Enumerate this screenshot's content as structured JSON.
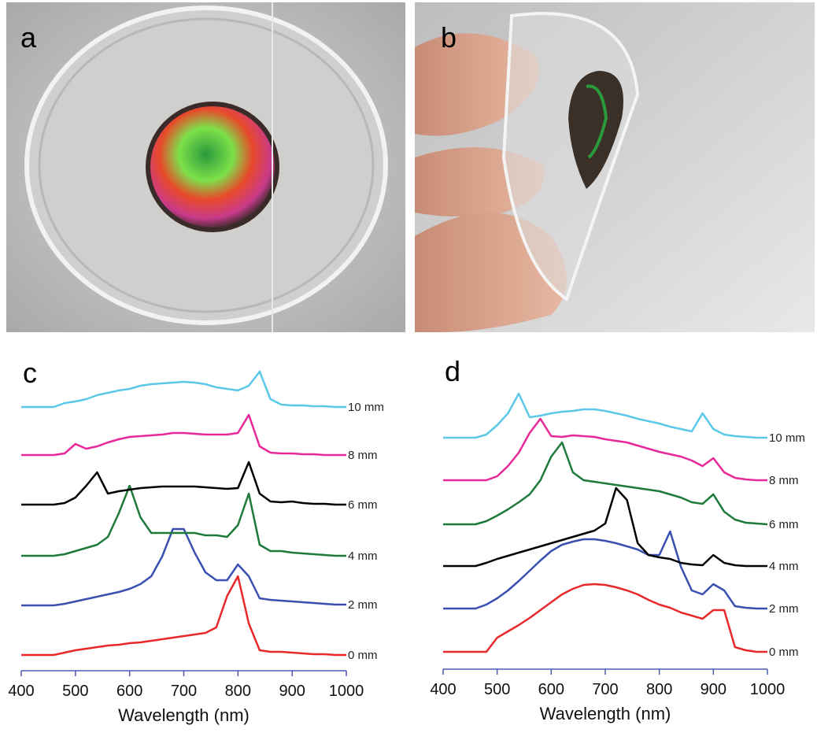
{
  "photo_labels": [
    "a",
    "b"
  ],
  "chart_data": [
    {
      "type": "line",
      "panel_label": "c",
      "xlabel": "Wavelength (nm)",
      "x": [
        400,
        420,
        440,
        460,
        480,
        500,
        520,
        540,
        560,
        580,
        600,
        620,
        640,
        660,
        680,
        700,
        720,
        740,
        760,
        780,
        800,
        820,
        840,
        860,
        880,
        900,
        920,
        940,
        960,
        980,
        1000
      ],
      "xlim": [
        400,
        1000
      ],
      "xticks": [
        400,
        500,
        600,
        700,
        800,
        900,
        1000
      ],
      "ylim": [
        0,
        400
      ],
      "series": [
        {
          "name": "0 mm",
          "color": "#e8282a",
          "values": [
            20,
            20,
            20,
            20,
            23,
            26,
            28,
            30,
            32,
            33,
            35,
            36,
            38,
            40,
            42,
            44,
            46,
            48,
            55,
            95,
            120,
            60,
            26,
            24,
            24,
            23,
            22,
            21,
            21,
            20,
            20
          ]
        },
        {
          "name": "2 mm",
          "color": "#3a50b0",
          "values": [
            83,
            83,
            83,
            83,
            85,
            88,
            91,
            94,
            97,
            100,
            104,
            110,
            120,
            145,
            180,
            180,
            150,
            125,
            115,
            115,
            135,
            120,
            92,
            90,
            89,
            88,
            87,
            86,
            85,
            84,
            84
          ]
        },
        {
          "name": "4 mm",
          "color": "#1e7a3a",
          "values": [
            146,
            146,
            146,
            146,
            148,
            152,
            156,
            160,
            170,
            200,
            235,
            195,
            175,
            175,
            175,
            175,
            175,
            172,
            172,
            170,
            185,
            225,
            160,
            152,
            152,
            150,
            149,
            148,
            147,
            146,
            146
          ]
        },
        {
          "name": "6 mm",
          "color": "#000000",
          "values": [
            211,
            211,
            211,
            211,
            213,
            220,
            235,
            252,
            225,
            228,
            230,
            232,
            233,
            234,
            234,
            234,
            234,
            233,
            232,
            231,
            232,
            265,
            225,
            215,
            214,
            215,
            213,
            212,
            212,
            211,
            211
          ]
        },
        {
          "name": "8 mm",
          "color": "#e8289a",
          "values": [
            274,
            274,
            274,
            274,
            276,
            288,
            282,
            285,
            290,
            294,
            297,
            298,
            299,
            300,
            302,
            302,
            301,
            300,
            300,
            300,
            302,
            325,
            285,
            277,
            276,
            276,
            275,
            275,
            274,
            274,
            274
          ]
        },
        {
          "name": "10 mm",
          "color": "#5bc8e8",
          "values": [
            335,
            335,
            335,
            335,
            340,
            342,
            345,
            350,
            353,
            356,
            358,
            362,
            364,
            365,
            366,
            367,
            366,
            364,
            360,
            358,
            356,
            362,
            380,
            345,
            338,
            337,
            337,
            336,
            336,
            335,
            335
          ]
        }
      ]
    },
    {
      "type": "line",
      "panel_label": "d",
      "xlabel": "Wavelength (nm)",
      "x": [
        400,
        420,
        440,
        460,
        480,
        500,
        520,
        540,
        560,
        580,
        600,
        620,
        640,
        660,
        680,
        700,
        720,
        740,
        760,
        780,
        800,
        820,
        840,
        860,
        880,
        900,
        920,
        940,
        960,
        980,
        1000
      ],
      "xlim": [
        400,
        1000
      ],
      "xticks": [
        400,
        500,
        600,
        700,
        800,
        900,
        1000
      ],
      "ylim": [
        0,
        400
      ],
      "series": [
        {
          "name": "0 mm",
          "color": "#e8282a",
          "values": [
            22,
            22,
            22,
            22,
            22,
            40,
            48,
            56,
            65,
            75,
            85,
            95,
            102,
            107,
            108,
            107,
            104,
            100,
            95,
            88,
            82,
            78,
            72,
            68,
            64,
            75,
            75,
            28,
            24,
            22,
            22
          ]
        },
        {
          "name": "2 mm",
          "color": "#3a50b0",
          "values": [
            77,
            77,
            77,
            77,
            82,
            90,
            100,
            112,
            125,
            138,
            150,
            158,
            162,
            165,
            165,
            163,
            160,
            156,
            152,
            145,
            145,
            175,
            130,
            100,
            95,
            108,
            100,
            80,
            78,
            77,
            77
          ]
        },
        {
          "name": "4 mm",
          "color": "#000000",
          "values": [
            131,
            131,
            131,
            131,
            135,
            140,
            144,
            148,
            152,
            156,
            160,
            164,
            168,
            172,
            176,
            185,
            230,
            215,
            160,
            145,
            142,
            140,
            135,
            133,
            132,
            145,
            135,
            132,
            131,
            131,
            131
          ]
        },
        {
          "name": "6 mm",
          "color": "#1e7a3a",
          "values": [
            184,
            184,
            184,
            184,
            188,
            195,
            203,
            212,
            222,
            240,
            270,
            288,
            250,
            240,
            238,
            236,
            234,
            232,
            230,
            228,
            226,
            222,
            218,
            212,
            210,
            222,
            200,
            190,
            186,
            185,
            184
          ]
        },
        {
          "name": "8 mm",
          "color": "#e8289a",
          "values": [
            240,
            240,
            240,
            240,
            240,
            245,
            258,
            275,
            300,
            318,
            296,
            295,
            297,
            296,
            295,
            292,
            290,
            288,
            284,
            280,
            276,
            273,
            270,
            265,
            258,
            268,
            250,
            243,
            241,
            240,
            240
          ]
        },
        {
          "name": "10 mm",
          "color": "#5bc8e8",
          "values": [
            294,
            294,
            294,
            294,
            298,
            310,
            325,
            350,
            320,
            322,
            325,
            327,
            328,
            330,
            330,
            328,
            325,
            322,
            318,
            315,
            312,
            308,
            305,
            302,
            325,
            305,
            298,
            296,
            295,
            294,
            294
          ]
        }
      ]
    }
  ]
}
